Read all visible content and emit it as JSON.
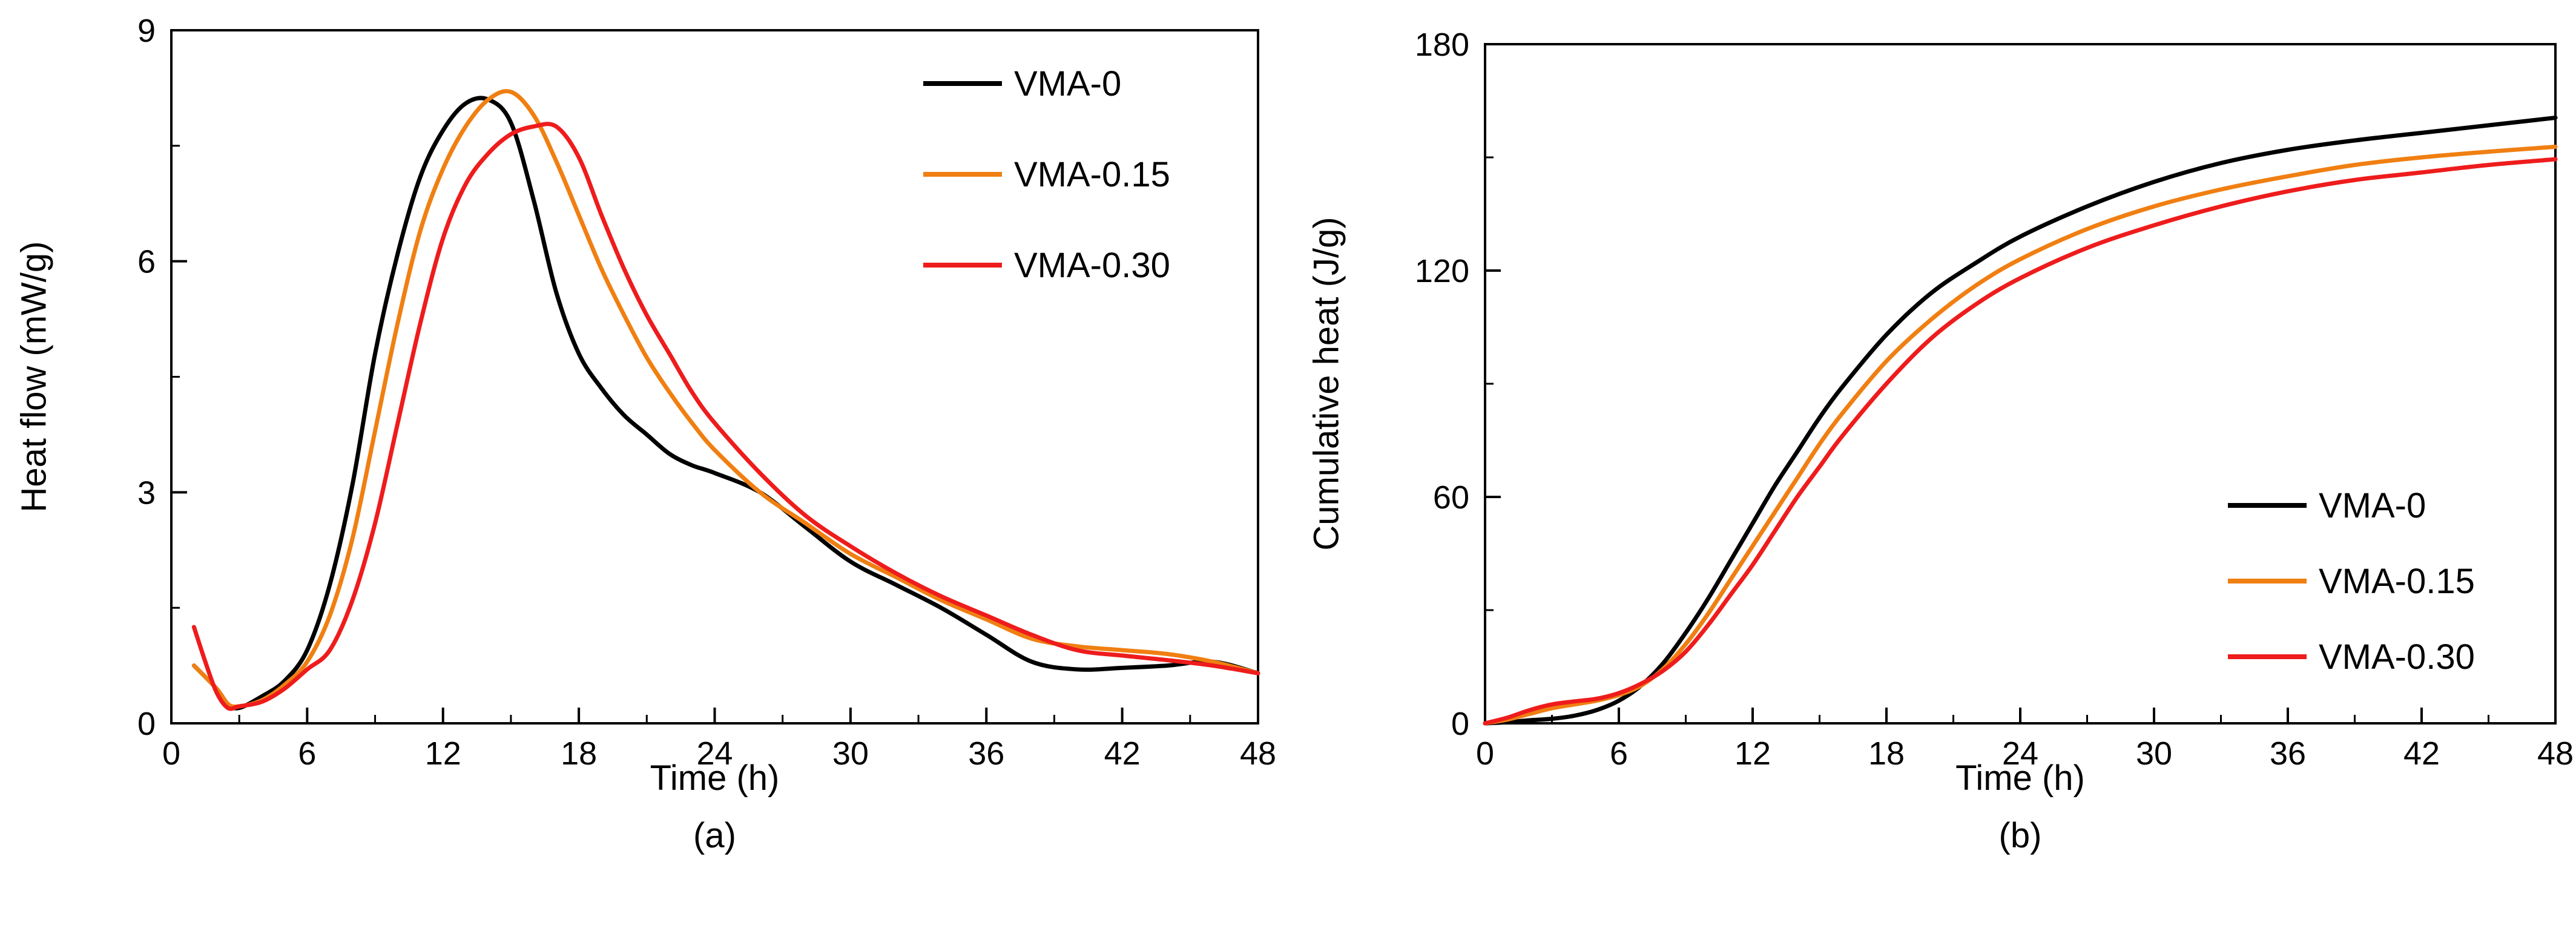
{
  "chart_data": [
    {
      "type": "line",
      "panel_label": "(a)",
      "xlabel": "Time (h)",
      "ylabel": "Heat flow (mW/g)",
      "xlim": [
        0,
        48
      ],
      "ylim": [
        0,
        9
      ],
      "xticks": [
        "0",
        "6",
        "12",
        "18",
        "24",
        "30",
        "36",
        "42",
        "48"
      ],
      "yticks": [
        "0",
        "3",
        "6",
        "9"
      ],
      "legend_position": "top-right",
      "series": [
        {
          "name": "VMA-0",
          "color": "#000000",
          "x": [
            1,
            2,
            2.5,
            3,
            4,
            5,
            6,
            7,
            8,
            9,
            10,
            11,
            12,
            13,
            14,
            15,
            16,
            17,
            18,
            19,
            20,
            21,
            22,
            23,
            24,
            26,
            28,
            30,
            32,
            34,
            36,
            38,
            40,
            42,
            44,
            46,
            48
          ],
          "values": [
            0.75,
            0.45,
            0.25,
            0.2,
            0.35,
            0.55,
            0.95,
            1.8,
            3.1,
            4.8,
            6.1,
            7.1,
            7.7,
            8.05,
            8.1,
            7.8,
            6.8,
            5.6,
            4.8,
            4.35,
            4.0,
            3.75,
            3.5,
            3.35,
            3.25,
            3.0,
            2.55,
            2.1,
            1.8,
            1.5,
            1.15,
            0.8,
            0.7,
            0.72,
            0.75,
            0.8,
            0.65
          ]
        },
        {
          "name": "VMA-0.15",
          "color": "#F07F12",
          "x": [
            1,
            2,
            2.5,
            3,
            4,
            5,
            6,
            7,
            8,
            9,
            10,
            11,
            12,
            13,
            14,
            15,
            16,
            17,
            18,
            19,
            20,
            21,
            22,
            23,
            24,
            26,
            28,
            30,
            32,
            34,
            36,
            38,
            40,
            42,
            44,
            46,
            48
          ],
          "values": [
            0.75,
            0.45,
            0.25,
            0.22,
            0.3,
            0.5,
            0.8,
            1.4,
            2.4,
            3.8,
            5.2,
            6.4,
            7.2,
            7.75,
            8.1,
            8.2,
            7.9,
            7.3,
            6.6,
            5.9,
            5.3,
            4.75,
            4.3,
            3.9,
            3.55,
            3.0,
            2.6,
            2.2,
            1.9,
            1.6,
            1.35,
            1.1,
            1.0,
            0.95,
            0.9,
            0.8,
            0.65
          ]
        },
        {
          "name": "VMA-0.30",
          "color": "#EE1C1C",
          "x": [
            1,
            1.5,
            2,
            2.5,
            3,
            4,
            5,
            6,
            7,
            8,
            9,
            10,
            11,
            12,
            13,
            14,
            15,
            16,
            17,
            18,
            19,
            20,
            21,
            22,
            23,
            24,
            26,
            28,
            30,
            32,
            34,
            36,
            38,
            40,
            42,
            44,
            46,
            48
          ],
          "values": [
            1.25,
            0.8,
            0.4,
            0.2,
            0.22,
            0.28,
            0.45,
            0.7,
            0.95,
            1.6,
            2.6,
            3.9,
            5.2,
            6.3,
            7.0,
            7.4,
            7.65,
            7.75,
            7.75,
            7.35,
            6.6,
            5.9,
            5.3,
            4.8,
            4.3,
            3.9,
            3.25,
            2.7,
            2.3,
            1.95,
            1.65,
            1.4,
            1.15,
            0.95,
            0.88,
            0.82,
            0.75,
            0.65
          ]
        }
      ]
    },
    {
      "type": "line",
      "panel_label": "(b)",
      "xlabel": "Time (h)",
      "ylabel": "Cumulative heat (J/g)",
      "xlim": [
        0,
        48
      ],
      "ylim": [
        0,
        180
      ],
      "xticks": [
        "0",
        "6",
        "12",
        "18",
        "24",
        "30",
        "36",
        "42",
        "48"
      ],
      "yticks": [
        "0",
        "60",
        "120",
        "180"
      ],
      "legend_position": "bottom-right",
      "series": [
        {
          "name": "VMA-0",
          "color": "#000000",
          "x": [
            0,
            1,
            2,
            3,
            4,
            5,
            6,
            7,
            8,
            9,
            10,
            11,
            12,
            13,
            14,
            15,
            16,
            18,
            20,
            22,
            24,
            27,
            30,
            33,
            36,
            39,
            42,
            45,
            48
          ],
          "values": [
            0,
            0.3,
            0.8,
            1.2,
            2.0,
            3.5,
            6.0,
            10.0,
            16.0,
            24.0,
            33.0,
            43.0,
            53.0,
            63.0,
            72.0,
            81.0,
            89.0,
            103.0,
            114.0,
            122.0,
            129.0,
            137.0,
            143.5,
            148.5,
            152.0,
            154.5,
            156.5,
            158.5,
            160.5
          ]
        },
        {
          "name": "VMA-0.15",
          "color": "#F07F12",
          "x": [
            0,
            1,
            2,
            3,
            4,
            5,
            6,
            7,
            8,
            9,
            10,
            11,
            12,
            13,
            14,
            15,
            16,
            18,
            20,
            22,
            24,
            27,
            30,
            33,
            36,
            39,
            42,
            45,
            48
          ],
          "values": [
            0,
            1.0,
            2.5,
            4.0,
            5.0,
            6.0,
            7.5,
            10.0,
            14.5,
            21.0,
            29.0,
            38.0,
            47.0,
            56.0,
            65.0,
            74.0,
            82.0,
            96.0,
            107.0,
            116.0,
            123.0,
            131.0,
            137.0,
            141.5,
            145.0,
            148.0,
            150.0,
            151.5,
            152.8
          ]
        },
        {
          "name": "VMA-0.30",
          "color": "#EE1C1C",
          "x": [
            0,
            1,
            2,
            3,
            4,
            5,
            6,
            7,
            8,
            9,
            10,
            11,
            12,
            13,
            14,
            15,
            16,
            18,
            20,
            22,
            24,
            27,
            30,
            33,
            36,
            39,
            42,
            45,
            48
          ],
          "values": [
            0,
            1.5,
            3.5,
            5.0,
            5.8,
            6.5,
            8.0,
            10.5,
            14.0,
            19.0,
            26.0,
            34.0,
            42.0,
            51.0,
            60.0,
            68.0,
            76.0,
            90.0,
            102.0,
            111.0,
            118.0,
            126.0,
            132.0,
            137.0,
            141.0,
            144.0,
            146.0,
            148.0,
            149.5
          ]
        }
      ]
    }
  ]
}
